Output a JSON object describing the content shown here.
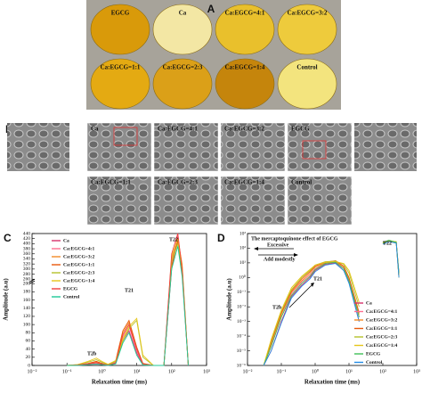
{
  "panels": {
    "a": "A",
    "b": "B",
    "c": "C",
    "d": "D"
  },
  "photos": [
    {
      "label": "EGCG",
      "color": "#d99a0a"
    },
    {
      "label": "Ca",
      "color": "#f3e7a4"
    },
    {
      "label": "Ca:EGCG=4:1",
      "color": "#e9c02c"
    },
    {
      "label": "Ca:EGCG=3:2",
      "color": "#eecb3c"
    },
    {
      "label": "Ca:EGCG=1:1",
      "color": "#e4aa12"
    },
    {
      "label": "Ca:EGCG=2:3",
      "color": "#dba018"
    },
    {
      "label": "Ca:EGCG=1:4",
      "color": "#c5850c"
    },
    {
      "label": "Control",
      "color": "#f3e47e"
    }
  ],
  "sem": [
    "Ca",
    "Ca:EGCG=4:1",
    "Ca:EGCG=3:2",
    "EGCG",
    "Ca:EGCG=1:1",
    "Ca:EGCG=2:3",
    "Ca:EGCG=1:4",
    "Control"
  ],
  "chart_data": [
    {
      "type": "line",
      "xlabel": "Relaxation time (ms)",
      "ylabel": "Amplitude (a.u)",
      "xlog": true,
      "xlim": [
        0.01,
        1000
      ],
      "xticks": [
        {
          "value": 0.01,
          "label": "10⁻²"
        },
        {
          "value": 0.1,
          "label": "10⁻¹"
        },
        {
          "value": 1,
          "label": "10⁰"
        },
        {
          "value": 10,
          "label": "10¹"
        },
        {
          "value": 100,
          "label": "10²"
        },
        {
          "value": 1000,
          "label": "10³"
        }
      ],
      "ylim": [
        0,
        440
      ],
      "ybreak": [
        200,
        260
      ],
      "yticks": [
        0,
        20,
        40,
        60,
        80,
        100,
        120,
        140,
        160,
        180,
        200,
        260,
        280,
        300,
        320,
        340,
        360,
        380,
        400,
        420,
        440
      ],
      "annotations": {
        "t22": "T22",
        "t21": "T21",
        "t2b": "T2b"
      },
      "x": [
        0.1,
        0.2,
        0.4,
        0.7,
        1,
        1.5,
        2.5,
        4,
        6,
        10,
        15,
        30,
        60,
        100,
        150,
        200,
        300
      ],
      "series": [
        {
          "name": "Ca",
          "color": "#d6336c",
          "values": [
            0,
            0,
            2,
            4,
            2,
            0,
            5,
            60,
            85,
            30,
            2,
            0,
            0,
            300,
            430,
            300,
            0
          ]
        },
        {
          "name": "Ca:EGCG=4:1",
          "color": "#ff6f91",
          "values": [
            0,
            1,
            3,
            6,
            3,
            1,
            8,
            70,
            95,
            35,
            3,
            0,
            0,
            320,
            440,
            280,
            0
          ]
        },
        {
          "name": "Ca:EGCG=3:2",
          "color": "#f28c28",
          "values": [
            0,
            1,
            4,
            8,
            4,
            1,
            10,
            80,
            105,
            40,
            4,
            0,
            0,
            340,
            420,
            320,
            0
          ]
        },
        {
          "name": "Ca:EGCG=1:1",
          "color": "#e8590c",
          "values": [
            0,
            1,
            5,
            10,
            5,
            1,
            12,
            85,
            110,
            45,
            5,
            0,
            0,
            310,
            410,
            290,
            0
          ]
        },
        {
          "name": "Ca:EGCG=2:3",
          "color": "#b5c22a",
          "values": [
            0,
            2,
            8,
            14,
            8,
            2,
            10,
            60,
            90,
            110,
            20,
            0,
            0,
            330,
            400,
            300,
            0
          ]
        },
        {
          "name": "Ca:EGCG=1:4",
          "color": "#e6c619",
          "values": [
            0,
            2,
            10,
            18,
            10,
            3,
            12,
            65,
            95,
            115,
            25,
            0,
            0,
            350,
            420,
            310,
            0
          ]
        },
        {
          "name": "EGCG",
          "color": "#f03e3e",
          "values": [
            0,
            1,
            4,
            7,
            3,
            1,
            6,
            75,
            100,
            40,
            3,
            0,
            0,
            360,
            440,
            300,
            0
          ]
        },
        {
          "name": "Control",
          "color": "#20c997",
          "values": [
            0,
            0,
            2,
            3,
            2,
            0,
            4,
            55,
            80,
            25,
            1,
            0,
            0,
            300,
            390,
            270,
            0
          ]
        }
      ]
    },
    {
      "type": "line",
      "xlabel": "Relaxation time (ms)",
      "ylabel": "Amplitude (a.u)",
      "xlog": true,
      "xlim": [
        0.01,
        1000
      ],
      "xticks": [
        {
          "value": 0.01,
          "label": "10⁻²"
        },
        {
          "value": 0.1,
          "label": "10⁻¹"
        },
        {
          "value": 1,
          "label": "10⁰"
        },
        {
          "value": 10,
          "label": "10¹"
        },
        {
          "value": 100,
          "label": "10²"
        },
        {
          "value": 1000,
          "label": "10³"
        }
      ],
      "ylog": true,
      "ylim": [
        1e-06,
        1000
      ],
      "yticks": [
        {
          "value": 1e-06,
          "label": "10⁻⁶"
        },
        {
          "value": 1e-05,
          "label": "10⁻⁵"
        },
        {
          "value": 0.0001,
          "label": "10⁻⁴"
        },
        {
          "value": 0.001,
          "label": "10⁻³"
        },
        {
          "value": 0.01,
          "label": "10⁻²"
        },
        {
          "value": 0.1,
          "label": "10⁻¹"
        },
        {
          "value": 1,
          "label": "10⁰"
        },
        {
          "value": 10,
          "label": "10¹"
        },
        {
          "value": 100,
          "label": "10²"
        },
        {
          "value": 1000,
          "label": "10³"
        }
      ],
      "annotations": {
        "effect": "The mercaptoquinone effect of EGCG",
        "excessive": "Excessive",
        "modest": "Add modestly",
        "t22": "T22",
        "t21": "T21",
        "t2b": "T2b"
      },
      "x": [
        0.03,
        0.05,
        0.1,
        0.2,
        0.4,
        0.7,
        1,
        2,
        4,
        7,
        10,
        20,
        60,
        100,
        150,
        250,
        300
      ],
      "series": [
        {
          "name": "Ca",
          "color": "#d6336c",
          "values": [
            1e-06,
            1e-05,
            0.001,
            0.05,
            0.3,
            1,
            3,
            8,
            10,
            3,
            0.5,
            0.001,
            null,
            200,
            300,
            250,
            1
          ]
        },
        {
          "name": "Ca:EGCG=4:1",
          "color": "#ff6f91",
          "values": [
            1e-06,
            2e-05,
            0.002,
            0.08,
            0.5,
            1.5,
            4,
            9,
            12,
            4,
            0.6,
            0.002,
            null,
            220,
            320,
            240,
            2
          ]
        },
        {
          "name": "Ca:EGCG=3:2",
          "color": "#f28c28",
          "values": [
            1e-06,
            3e-05,
            0.003,
            0.1,
            0.6,
            2,
            5,
            10,
            13,
            5,
            0.8,
            0.003,
            null,
            250,
            310,
            230,
            1
          ]
        },
        {
          "name": "Ca:EGCG=1:1",
          "color": "#e8590c",
          "values": [
            1e-06,
            4e-05,
            0.004,
            0.12,
            0.8,
            2.5,
            6,
            11,
            14,
            6,
            1,
            0.004,
            null,
            260,
            330,
            260,
            2
          ]
        },
        {
          "name": "Ca:EGCG=2:3",
          "color": "#b5c22a",
          "values": [
            1e-06,
            5e-05,
            0.005,
            0.15,
            1,
            3,
            7,
            12,
            13,
            8,
            2,
            0.01,
            null,
            210,
            300,
            280,
            1
          ]
        },
        {
          "name": "Ca:EGCG=1:4",
          "color": "#e6c619",
          "values": [
            1e-06,
            6e-05,
            0.006,
            0.2,
            1.2,
            3.5,
            7,
            11,
            12,
            9,
            3,
            0.02,
            null,
            230,
            340,
            270,
            1
          ]
        },
        {
          "name": "EGCG",
          "color": "#40c057",
          "values": [
            1e-06,
            2e-05,
            0.002,
            0.06,
            0.4,
            1.2,
            3.5,
            9,
            11,
            4,
            0.6,
            0.002,
            null,
            240,
            350,
            250,
            2
          ]
        },
        {
          "name": "Control",
          "color": "#228be6",
          "values": [
            1e-06,
            1e-05,
            0.0008,
            0.04,
            0.25,
            0.8,
            2.5,
            7,
            9,
            3,
            0.4,
            0.001,
            null,
            190,
            280,
            220,
            1
          ]
        }
      ]
    }
  ]
}
